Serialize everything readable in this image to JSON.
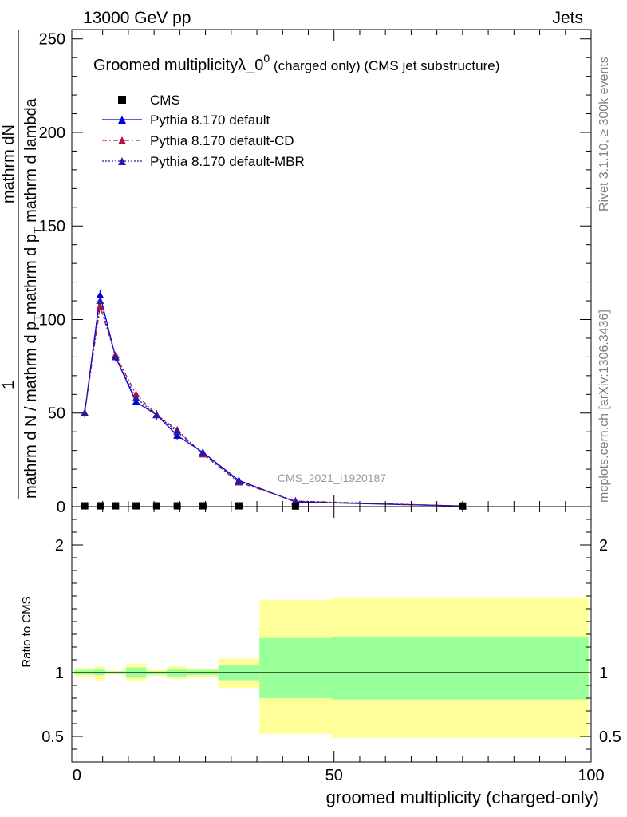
{
  "header": {
    "energy_label": "13000 GeV pp",
    "category_label": "Jets"
  },
  "side_text": {
    "rivet": "Rivet 3.1.10, ≥ 300k events",
    "mcplots": "mcplots.cern.ch [arXiv:1306.3436]"
  },
  "chart_data": {
    "type": "line",
    "title_main": "Groomed multiplicityλ_0",
    "title_sup": "0",
    "title_rest": " (charged only) (CMS jet substructure)",
    "watermark": "CMS_2021_I1920187",
    "ylabel_numerator": "1",
    "ylabel_line1": "mathrm dN",
    "ylabel_line2": "mathrm d N / mathrm d p",
    "ylabel_line2_sub": "T",
    "ylabel_line2_rest": "mathrm d p",
    "ylabel_line2_sub2": "T",
    "ylabel_line2_rest2": " mathrm d lambda",
    "xlabel": "groomed multiplicity (charged-only)",
    "ratio_ylabel": "Ratio to CMS",
    "xlim": [
      -1,
      100
    ],
    "ylim": [
      0,
      255
    ],
    "ratio_ylim": [
      0.3,
      2.3
    ],
    "x_ticks": [
      "0",
      "50",
      "100"
    ],
    "y_ticks": [
      "0",
      "50",
      "100",
      "150",
      "200",
      "250"
    ],
    "ratio_ticks": [
      "0.5",
      "1",
      "2"
    ],
    "ratio_tick_values": [
      0.5,
      1,
      2
    ],
    "legend": {
      "placement": "top-left",
      "entries": [
        {
          "label": "CMS",
          "marker": "square",
          "color": "#000000",
          "dash": "none"
        },
        {
          "label": "Pythia 8.170 default",
          "marker": "triangle",
          "color": "#0000dd",
          "dash": "solid"
        },
        {
          "label": "Pythia 8.170 default-CD",
          "marker": "triangle",
          "color": "#b0153d",
          "dash": "dashdot"
        },
        {
          "label": "Pythia 8.170 default-MBR",
          "marker": "triangle",
          "color": "#2a1aa8",
          "dash": "dotted"
        }
      ]
    },
    "cms": {
      "x": [
        1.5,
        4.5,
        7.5,
        11.5,
        15.5,
        19.5,
        24.5,
        31.5,
        42.5,
        75
      ],
      "y": [
        0.2,
        0.2,
        0.2,
        0.2,
        0.2,
        0.2,
        0.2,
        0.2,
        0.1,
        0.1
      ]
    },
    "series": [
      {
        "name": "Pythia 8.170 default",
        "color": "#0000dd",
        "x": [
          1.5,
          4.5,
          7.5,
          11.5,
          15.5,
          19.5,
          24.5,
          31.5,
          42.5,
          75
        ],
        "y": [
          50,
          113,
          80,
          56,
          49,
          38,
          29,
          14,
          2.5,
          0.3
        ]
      },
      {
        "name": "Pythia 8.170 default-CD",
        "color": "#b0153d",
        "x": [
          1.5,
          4.5,
          7.5,
          11.5,
          15.5,
          19.5,
          24.5,
          31.5,
          42.5,
          75
        ],
        "y": [
          50,
          107,
          81,
          60,
          49,
          41,
          28,
          13,
          3,
          0.3
        ]
      },
      {
        "name": "Pythia 8.170 default-MBR",
        "color": "#2a1aa8",
        "x": [
          1.5,
          4.5,
          7.5,
          11.5,
          15.5,
          19.5,
          24.5,
          31.5,
          42.5,
          75
        ],
        "y": [
          50,
          110,
          80,
          58,
          49,
          40,
          28.5,
          13.5,
          2.8,
          0.3
        ]
      }
    ],
    "ratio_bands": {
      "yellow_color": "#ffff99",
      "green_color": "#99ff99",
      "bins": [
        {
          "x0": -0.5,
          "x1": 3.5,
          "ylo": 0.965,
          "yhi": 1.035,
          "glo": 0.985,
          "ghi": 1.02
        },
        {
          "x0": 3.5,
          "x1": 5.5,
          "ylo": 0.94,
          "yhi": 1.05,
          "glo": 0.98,
          "ghi": 1.03
        },
        {
          "x0": 5.5,
          "x1": 9.5,
          "ylo": 0.985,
          "yhi": 1.015,
          "glo": 0.99,
          "ghi": 1.01
        },
        {
          "x0": 9.5,
          "x1": 13.5,
          "ylo": 0.93,
          "yhi": 1.07,
          "glo": 0.96,
          "ghi": 1.04
        },
        {
          "x0": 13.5,
          "x1": 17.5,
          "ylo": 0.975,
          "yhi": 1.02,
          "glo": 0.985,
          "ghi": 1.01
        },
        {
          "x0": 17.5,
          "x1": 21.5,
          "ylo": 0.95,
          "yhi": 1.05,
          "glo": 0.97,
          "ghi": 1.03
        },
        {
          "x0": 21.5,
          "x1": 27.5,
          "ylo": 0.96,
          "yhi": 1.035,
          "glo": 0.98,
          "ghi": 1.02
        },
        {
          "x0": 27.5,
          "x1": 35.5,
          "ylo": 0.88,
          "yhi": 1.11,
          "glo": 0.94,
          "ghi": 1.055
        },
        {
          "x0": 35.5,
          "x1": 49.5,
          "ylo": 0.52,
          "yhi": 1.57,
          "glo": 0.8,
          "ghi": 1.27
        },
        {
          "x0": 49.5,
          "x1": 99.5,
          "ylo": 0.49,
          "yhi": 1.59,
          "glo": 0.79,
          "ghi": 1.28
        }
      ]
    }
  }
}
